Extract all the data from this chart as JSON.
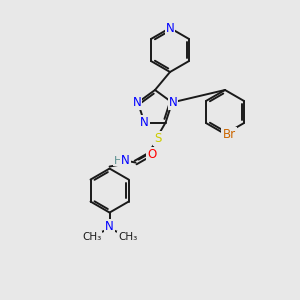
{
  "background_color": "#e8e8e8",
  "bond_color": "#1a1a1a",
  "atom_colors": {
    "N": "#0000ff",
    "O": "#ff0000",
    "S": "#cccc00",
    "Br": "#cc6600",
    "H": "#5a9090",
    "C": "#1a1a1a"
  },
  "figsize": [
    3.0,
    3.0
  ],
  "dpi": 100,
  "lw": 1.4,
  "fs": 8.5,
  "bg": "#e8e8e8"
}
